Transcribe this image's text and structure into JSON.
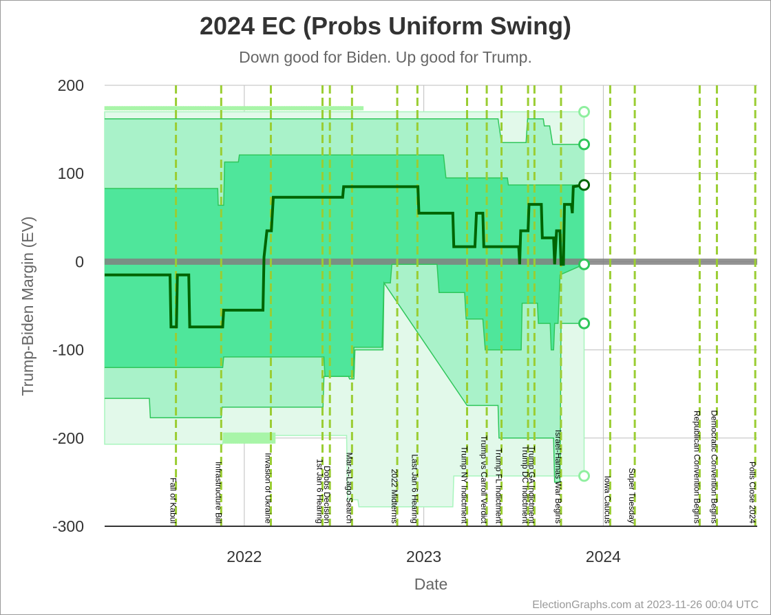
{
  "chart_data": {
    "type": "line",
    "title": "2024 EC (Probs Uniform Swing)",
    "subtitle": "Down good for Biden. Up good for Trump.",
    "xlabel": "Date",
    "ylabel": "Trump-Biden Margin (EV)",
    "ylim": [
      -300,
      200
    ],
    "xlim": [
      "2021-03-23",
      "2024-11-09"
    ],
    "y_ticks": [
      "200",
      "100",
      "0",
      "-100",
      "-200",
      "-300"
    ],
    "x_ticks": [
      {
        "label": "2022",
        "date": "2022-01-01"
      },
      {
        "label": "2023",
        "date": "2023-01-01"
      },
      {
        "label": "2024",
        "date": "2024-01-01"
      }
    ],
    "grid": true,
    "credit": "ElectionGraphs.com at 2023-11-26 00:04 UTC",
    "colors": {
      "outer_band": "#e2f9ea",
      "outer_band_edge": "#a8f5bd",
      "mid_band": "#a9f2c9",
      "inner_band": "#4fe69b",
      "band_edge": "#2fc65a",
      "median": "#006400",
      "event_line": "#9acd32",
      "zero_band": "#808080",
      "scatter": "#a8f5a8"
    },
    "events": [
      {
        "label": "Fall of Kabul",
        "date": "2021-08-15"
      },
      {
        "label": "Infrastructure Bill",
        "date": "2021-11-15"
      },
      {
        "label": "Invasion of Ukraine",
        "date": "2022-02-24"
      },
      {
        "label": "1st Jan 6 Hearing",
        "date": "2022-06-09"
      },
      {
        "label": "Dobbs Decision",
        "date": "2022-06-24"
      },
      {
        "label": "Mar-a-Lago Search",
        "date": "2022-08-08"
      },
      {
        "label": "2022 Midterms",
        "date": "2022-11-08"
      },
      {
        "label": "Last Jan 6 Hearing",
        "date": "2022-12-19"
      },
      {
        "label": "Trump NY Indictment",
        "date": "2023-03-30"
      },
      {
        "label": "Trump vs Carroll Verdict",
        "date": "2023-05-09"
      },
      {
        "label": "Trump FL Indictment",
        "date": "2023-06-08"
      },
      {
        "label": "Trump DC Indictment",
        "date": "2023-08-01"
      },
      {
        "label": "Trump GA Indictment",
        "date": "2023-08-14"
      },
      {
        "label": "Israel-Hamas War Begins",
        "date": "2023-10-07"
      },
      {
        "label": "Iowa Caucus",
        "date": "2024-01-15"
      },
      {
        "label": "Super Tuesday",
        "date": "2024-03-05"
      },
      {
        "label": "Republican Convention Begins",
        "date": "2024-07-15"
      },
      {
        "label": "Democratic Convention Begins",
        "date": "2024-08-19"
      },
      {
        "label": "Polls Close 2024",
        "date": "2024-11-05"
      }
    ],
    "series": [
      {
        "name": "",
        "role": "outer_upper",
        "points": [
          [
            "2021-03-23",
            170
          ],
          [
            "2023-11-23",
            170
          ]
        ]
      },
      {
        "name": "",
        "role": "mid_upper",
        "points": [
          [
            "2021-03-23",
            162
          ],
          [
            "2023-06-01",
            162
          ],
          [
            "2023-06-08",
            135
          ],
          [
            "2023-07-28",
            135
          ],
          [
            "2023-07-31",
            162
          ],
          [
            "2023-09-01",
            162
          ],
          [
            "2023-09-03",
            154
          ],
          [
            "2023-09-14",
            154
          ],
          [
            "2023-09-20",
            133
          ],
          [
            "2023-11-23",
            133
          ]
        ]
      },
      {
        "name": "",
        "role": "inner_upper",
        "points": [
          [
            "2021-03-23",
            83
          ],
          [
            "2021-11-08",
            83
          ],
          [
            "2021-11-09",
            64
          ],
          [
            "2021-11-20",
            64
          ],
          [
            "2021-11-22",
            113
          ],
          [
            "2021-12-20",
            113
          ],
          [
            "2021-12-22",
            121
          ],
          [
            "2023-02-10",
            121
          ],
          [
            "2023-02-15",
            95
          ],
          [
            "2023-06-20",
            95
          ],
          [
            "2023-06-22",
            87
          ],
          [
            "2023-11-23",
            87
          ]
        ]
      },
      {
        "name": "",
        "role": "median",
        "points": [
          [
            "2021-03-23",
            -15
          ],
          [
            "2021-08-03",
            -15
          ],
          [
            "2021-08-05",
            -74
          ],
          [
            "2021-08-16",
            -74
          ],
          [
            "2021-08-18",
            -15
          ],
          [
            "2021-09-10",
            -15
          ],
          [
            "2021-09-12",
            -74
          ],
          [
            "2021-11-18",
            -74
          ],
          [
            "2021-11-20",
            -55
          ],
          [
            "2022-02-08",
            -55
          ],
          [
            "2022-02-10",
            5
          ],
          [
            "2022-02-16",
            35
          ],
          [
            "2022-02-25",
            35
          ],
          [
            "2022-03-01",
            73
          ],
          [
            "2022-07-20",
            73
          ],
          [
            "2022-07-22",
            85
          ],
          [
            "2022-12-20",
            85
          ],
          [
            "2022-12-22",
            55
          ],
          [
            "2023-03-01",
            55
          ],
          [
            "2023-03-03",
            17
          ],
          [
            "2023-04-15",
            17
          ],
          [
            "2023-04-18",
            55
          ],
          [
            "2023-05-01",
            55
          ],
          [
            "2023-05-03",
            17
          ],
          [
            "2023-07-13",
            17
          ],
          [
            "2023-07-15",
            -3
          ],
          [
            "2023-07-17",
            35
          ],
          [
            "2023-08-01",
            35
          ],
          [
            "2023-08-03",
            65
          ],
          [
            "2023-08-28",
            65
          ],
          [
            "2023-08-30",
            27
          ],
          [
            "2023-09-22",
            27
          ],
          [
            "2023-09-24",
            -3
          ],
          [
            "2023-09-28",
            35
          ],
          [
            "2023-10-05",
            35
          ],
          [
            "2023-10-07",
            -3
          ],
          [
            "2023-10-12",
            -3
          ],
          [
            "2023-10-14",
            65
          ],
          [
            "2023-10-28",
            65
          ],
          [
            "2023-10-30",
            55
          ],
          [
            "2023-11-01",
            85
          ],
          [
            "2023-11-23",
            87
          ]
        ]
      },
      {
        "name": "",
        "role": "inner_lower",
        "points": [
          [
            "2021-03-23",
            -120
          ],
          [
            "2021-11-18",
            -120
          ],
          [
            "2021-11-20",
            -108
          ],
          [
            "2022-06-12",
            -108
          ],
          [
            "2022-06-14",
            -130
          ],
          [
            "2022-08-10",
            -130
          ],
          [
            "2022-08-12",
            -97
          ],
          [
            "2022-10-08",
            -97
          ],
          [
            "2022-10-12",
            -24
          ],
          [
            "2022-10-25",
            -24
          ],
          [
            "2022-10-28",
            -3
          ],
          [
            "2023-01-28",
            -3
          ],
          [
            "2023-02-01",
            -35
          ],
          [
            "2023-03-25",
            -35
          ],
          [
            "2023-03-28",
            -65
          ],
          [
            "2023-05-01",
            -65
          ],
          [
            "2023-05-06",
            -100
          ],
          [
            "2023-07-18",
            -100
          ],
          [
            "2023-07-20",
            -47
          ],
          [
            "2023-08-20",
            -47
          ],
          [
            "2023-08-22",
            -70
          ],
          [
            "2023-09-15",
            -70
          ],
          [
            "2023-09-17",
            -100
          ],
          [
            "2023-09-22",
            -100
          ],
          [
            "2023-09-24",
            -70
          ],
          [
            "2023-10-01",
            -70
          ],
          [
            "2023-10-05",
            -15
          ],
          [
            "2023-11-23",
            -3
          ]
        ]
      },
      {
        "name": "",
        "role": "mid_lower",
        "points": [
          [
            "2021-03-23",
            -155
          ],
          [
            "2021-06-22",
            -155
          ],
          [
            "2021-06-24",
            -177
          ],
          [
            "2021-11-15",
            -177
          ],
          [
            "2021-11-17",
            -165
          ],
          [
            "2022-02-26",
            -165
          ],
          [
            "2022-02-28",
            -165
          ],
          [
            "2022-06-10",
            -165
          ],
          [
            "2022-06-12",
            -130
          ],
          [
            "2022-08-01",
            -130
          ],
          [
            "2022-08-03",
            -133
          ],
          [
            "2022-08-12",
            -133
          ],
          [
            "2022-08-14",
            -100
          ],
          [
            "2022-10-10",
            -100
          ],
          [
            "2022-10-12",
            -24
          ],
          [
            "2023-03-30",
            -163
          ],
          [
            "2023-06-01",
            -163
          ],
          [
            "2023-06-03",
            -200
          ],
          [
            "2023-09-22",
            -200
          ],
          [
            "2023-09-24",
            -250
          ],
          [
            "2023-10-05",
            -250
          ],
          [
            "2023-10-07",
            -70
          ],
          [
            "2023-11-23",
            -70
          ]
        ]
      },
      {
        "name": "",
        "role": "outer_lower",
        "points": [
          [
            "2021-03-23",
            -207
          ],
          [
            "2021-11-18",
            -207
          ],
          [
            "2021-11-20",
            -197
          ],
          [
            "2022-07-28",
            -197
          ],
          [
            "2022-07-30",
            -270
          ],
          [
            "2022-08-20",
            -270
          ],
          [
            "2022-08-22",
            -278
          ],
          [
            "2023-03-01",
            -278
          ],
          [
            "2023-03-03",
            -243
          ],
          [
            "2023-11-23",
            -243
          ]
        ]
      }
    ],
    "endpoints": [
      {
        "value": 170,
        "shade": "light"
      },
      {
        "value": 133,
        "shade": "mid"
      },
      {
        "value": 87,
        "shade": "dark"
      },
      {
        "value": -3,
        "shade": "mid"
      },
      {
        "value": -70,
        "shade": "mid"
      },
      {
        "value": -243,
        "shade": "light"
      }
    ]
  }
}
